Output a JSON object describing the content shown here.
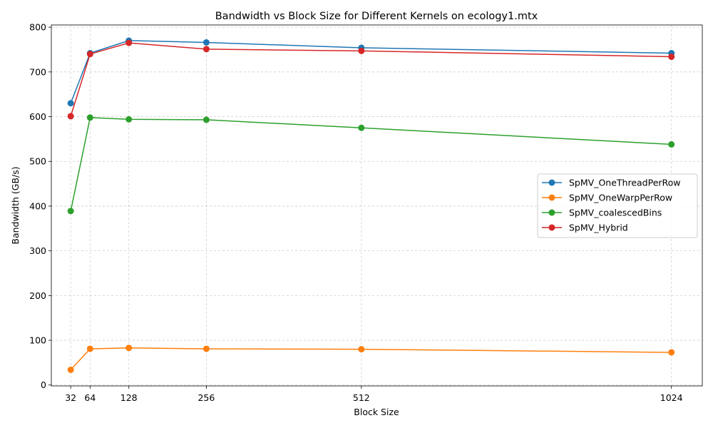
{
  "chart_data": {
    "type": "line",
    "title": "Bandwidth vs Block Size for Different Kernels on ecology1.mtx",
    "xlabel": "Block Size",
    "ylabel": "Bandwidth (GB/s)",
    "x": [
      32,
      64,
      128,
      256,
      512,
      1024
    ],
    "x_tick_labels": [
      "32",
      "64",
      "128",
      "256",
      "512",
      "1024"
    ],
    "xlim": [
      0,
      1075
    ],
    "ylim": [
      -2,
      805
    ],
    "y_ticks": [
      0,
      100,
      200,
      300,
      400,
      500,
      600,
      700,
      800
    ],
    "y_tick_labels": [
      "0",
      "100",
      "200",
      "300",
      "400",
      "500",
      "600",
      "700",
      "800"
    ],
    "grid": true,
    "legend_position": "center-right",
    "series": [
      {
        "name": "SpMV_OneThreadPerRow",
        "color": "#1f77b4",
        "values": [
          630,
          742,
          770,
          766,
          754,
          742
        ]
      },
      {
        "name": "SpMV_OneWarpPerRow",
        "color": "#ff7f0e",
        "values": [
          34,
          81,
          83,
          81,
          80,
          73
        ]
      },
      {
        "name": "SpMV_coalescedBins",
        "color": "#2ca02c",
        "values": [
          389,
          598,
          594,
          593,
          575,
          538
        ]
      },
      {
        "name": "SpMV_Hybrid",
        "color": "#d62728",
        "values": [
          601,
          740,
          765,
          751,
          747,
          734
        ]
      }
    ]
  }
}
